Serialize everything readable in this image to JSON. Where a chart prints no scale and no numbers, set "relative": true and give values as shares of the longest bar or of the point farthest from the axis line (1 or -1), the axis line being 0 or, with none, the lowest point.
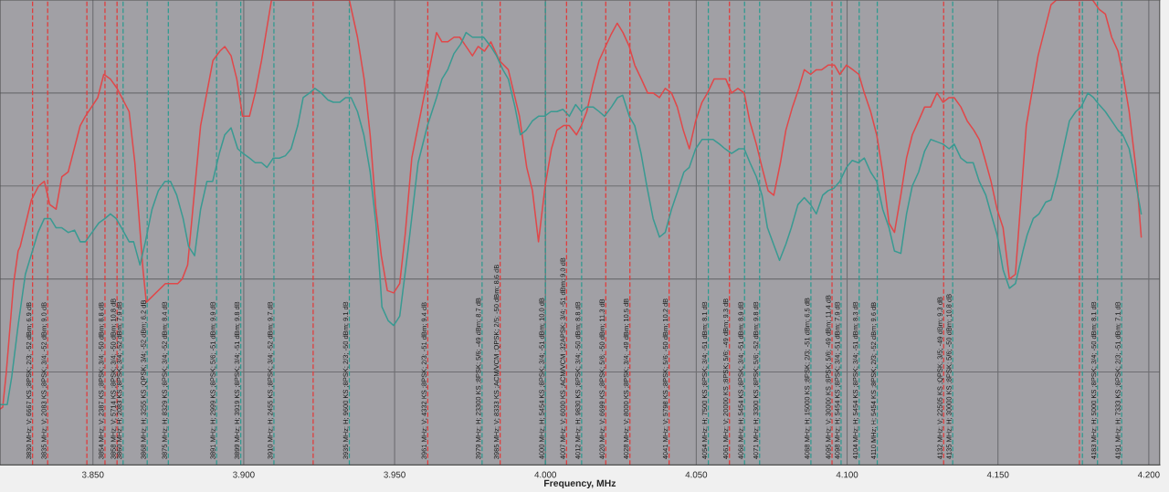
{
  "chart_data": {
    "type": "line",
    "relative": true,
    "xlabel": "Frequency, MHz",
    "xlim": [
      3.8192,
      4.2036
    ],
    "xticks": [
      {
        "value": 3.85,
        "label": "3.850"
      },
      {
        "value": 3.9,
        "label": "3.900"
      },
      {
        "value": 3.95,
        "label": "3.950"
      },
      {
        "value": 4.0,
        "label": "4.000"
      },
      {
        "value": 4.05,
        "label": "4.050"
      },
      {
        "value": 4.1,
        "label": "4.100"
      },
      {
        "value": 4.15,
        "label": "4.150"
      },
      {
        "value": 4.2,
        "label": "4.200"
      }
    ],
    "tick_labels": "x",
    "grid": true,
    "series": [
      {
        "color": "#e0484a",
        "x": [
          3.8192,
          3.8201,
          3.8213,
          3.8237,
          3.8252,
          3.8259,
          3.8296,
          3.832,
          3.8339,
          3.8357,
          3.8378,
          3.8397,
          3.8418,
          3.8458,
          3.8475,
          3.8516,
          3.8536,
          3.8558,
          3.858,
          3.862,
          3.8639,
          3.8666,
          3.8677,
          3.874,
          3.876,
          3.8781,
          3.8796,
          3.8814,
          3.8857,
          3.8898,
          3.8921,
          3.8937,
          3.8958,
          3.8977,
          3.8996,
          3.9019,
          3.9038,
          3.9059,
          3.9092,
          3.935,
          3.9377,
          3.9399,
          3.9419,
          3.9438,
          3.9456,
          3.9476,
          3.9497,
          3.9517,
          3.9535,
          3.9557,
          3.9609,
          3.9639,
          3.9657,
          3.9676,
          3.9697,
          3.9716,
          3.9737,
          3.9758,
          3.9777,
          3.9798,
          3.9819,
          3.9847,
          3.9877,
          3.9914,
          3.9938,
          3.9957,
          3.9977,
          3.9999,
          4.002,
          4.0038,
          4.006,
          4.0079,
          4.0103,
          4.0119,
          4.0137,
          4.0158,
          4.0178,
          4.0192,
          4.0217,
          4.0238,
          4.0257,
          4.0278,
          4.0296,
          4.0318,
          4.0339,
          4.0357,
          4.0378,
          4.0397,
          4.0418,
          4.0437,
          4.0457,
          4.0477,
          4.0498,
          4.0519,
          4.0537,
          4.0559,
          4.0577,
          4.0598,
          4.0617,
          4.0638,
          4.0659,
          4.0677,
          4.0699,
          4.0718,
          4.0738,
          4.0757,
          4.0779,
          4.0797,
          4.0819,
          4.084,
          4.0858,
          4.0879,
          4.0898,
          4.0916,
          4.0937,
          4.0958,
          4.0976,
          4.0998,
          4.1019,
          4.1039,
          4.1057,
          4.1078,
          4.1098,
          4.1118,
          4.1139,
          4.1157,
          4.1178,
          4.1197,
          4.1216,
          4.1237,
          4.1257,
          4.1277,
          4.1298,
          4.1318,
          4.1338,
          4.1355,
          4.1377,
          4.1398,
          4.142,
          4.1438,
          4.1456,
          4.1477,
          4.1497,
          4.1517,
          4.1538,
          4.1558,
          4.1594,
          4.1633,
          4.1676,
          4.1694,
          4.1814,
          4.1835,
          4.1856,
          4.1877,
          4.1898,
          4.1917,
          4.1935,
          4.1957,
          4.1975
        ],
        "values": [
          0.12,
          0.124,
          0.2,
          0.39,
          0.46,
          0.47,
          0.57,
          0.6,
          0.61,
          0.56,
          0.55,
          0.62,
          0.63,
          0.73,
          0.75,
          0.79,
          0.84,
          0.83,
          0.81,
          0.76,
          0.65,
          0.42,
          0.35,
          0.39,
          0.39,
          0.39,
          0.4,
          0.43,
          0.73,
          0.87,
          0.89,
          0.9,
          0.88,
          0.83,
          0.75,
          0.75,
          0.8,
          0.87,
          1.0,
          1.0,
          0.92,
          0.83,
          0.71,
          0.55,
          0.45,
          0.375,
          0.37,
          0.39,
          0.495,
          0.66,
          0.83,
          0.93,
          0.91,
          0.91,
          0.92,
          0.92,
          0.9,
          0.88,
          0.9,
          0.89,
          0.91,
          0.87,
          0.85,
          0.75,
          0.64,
          0.59,
          0.48,
          0.6,
          0.68,
          0.72,
          0.73,
          0.73,
          0.71,
          0.73,
          0.76,
          0.82,
          0.87,
          0.89,
          0.925,
          0.95,
          0.93,
          0.9,
          0.86,
          0.83,
          0.8,
          0.8,
          0.79,
          0.81,
          0.8,
          0.77,
          0.72,
          0.68,
          0.74,
          0.78,
          0.8,
          0.83,
          0.83,
          0.83,
          0.8,
          0.81,
          0.8,
          0.74,
          0.69,
          0.64,
          0.59,
          0.58,
          0.65,
          0.72,
          0.77,
          0.81,
          0.85,
          0.84,
          0.85,
          0.85,
          0.86,
          0.86,
          0.84,
          0.86,
          0.85,
          0.84,
          0.8,
          0.76,
          0.71,
          0.63,
          0.52,
          0.5,
          0.58,
          0.66,
          0.71,
          0.74,
          0.77,
          0.77,
          0.8,
          0.78,
          0.79,
          0.79,
          0.77,
          0.74,
          0.72,
          0.7,
          0.66,
          0.61,
          0.55,
          0.51,
          0.4,
          0.41,
          0.73,
          0.88,
          0.99,
          1.0,
          1.0,
          0.98,
          0.97,
          0.92,
          0.89,
          0.83,
          0.76,
          0.64,
          0.49
        ]
      },
      {
        "color": "#3a9a92",
        "x": [
          3.8192,
          3.8216,
          3.8231,
          3.8252,
          3.8276,
          3.8318,
          3.8339,
          3.8359,
          3.8378,
          3.8397,
          3.8418,
          3.8439,
          3.8458,
          3.8475,
          3.8497,
          3.8519,
          3.854,
          3.8558,
          3.8577,
          3.8599,
          3.862,
          3.8635,
          3.8656,
          3.8674,
          3.8696,
          3.8717,
          3.8739,
          3.8757,
          3.8778,
          3.8799,
          3.8817,
          3.8837,
          3.8857,
          3.8878,
          3.8897,
          3.8919,
          3.8937,
          3.8958,
          3.898,
          3.8998,
          3.9019,
          3.9038,
          3.9059,
          3.9077,
          3.9098,
          3.9118,
          3.9138,
          3.9157,
          3.9179,
          3.9197,
          3.9218,
          3.9236,
          3.9257,
          3.9279,
          3.9297,
          3.9318,
          3.9338,
          3.9356,
          3.9377,
          3.9398,
          3.9419,
          3.9438,
          3.945,
          3.9458,
          3.9479,
          3.9497,
          3.9517,
          3.9544,
          3.9578,
          3.9609,
          3.9639,
          3.9657,
          3.9676,
          3.9697,
          3.9719,
          3.9737,
          3.9758,
          3.9777,
          3.9795,
          3.9819,
          3.9838,
          3.9859,
          3.9877,
          3.9899,
          3.9917,
          3.9936,
          3.9957,
          3.9977,
          3.9997,
          4.0018,
          4.0038,
          4.0058,
          4.0079,
          4.01,
          4.0119,
          4.0137,
          4.0158,
          4.0178,
          4.0196,
          4.0219,
          4.0239,
          4.0256,
          4.0278,
          4.0296,
          4.0317,
          4.0336,
          4.0357,
          4.0378,
          4.0397,
          4.0418,
          4.0439,
          4.0459,
          4.0477,
          4.0498,
          4.0519,
          4.0537,
          4.0556,
          4.0577,
          4.0595,
          4.0617,
          4.0641,
          4.0659,
          4.0678,
          4.0699,
          4.0718,
          4.0736,
          4.0776,
          4.0797,
          4.0815,
          4.0837,
          4.0858,
          4.0879,
          4.0898,
          4.0919,
          4.0937,
          4.0956,
          4.0976,
          4.0998,
          4.1017,
          4.1037,
          4.1057,
          4.1078,
          4.1098,
          4.1118,
          4.1139,
          4.1157,
          4.1178,
          4.1197,
          4.1216,
          4.1237,
          4.1257,
          4.1277,
          4.1298,
          4.1318,
          4.1338,
          4.1355,
          4.1377,
          4.1398,
          4.1418,
          4.1438,
          4.146,
          4.1477,
          4.1497,
          4.1517,
          4.1538,
          4.1558,
          4.1583,
          4.1597,
          4.1617,
          4.1636,
          4.1658,
          4.1676,
          4.1697,
          4.1717,
          4.1737,
          4.1758,
          4.1776,
          4.1798,
          4.1817,
          4.1835,
          4.1856,
          4.1877,
          4.1898,
          4.1914,
          4.1935,
          4.1953,
          4.1975
        ],
        "values": [
          0.13,
          0.13,
          0.19,
          0.3,
          0.41,
          0.5,
          0.53,
          0.53,
          0.51,
          0.51,
          0.5,
          0.505,
          0.48,
          0.48,
          0.5,
          0.52,
          0.53,
          0.54,
          0.53,
          0.505,
          0.48,
          0.48,
          0.43,
          0.48,
          0.55,
          0.59,
          0.61,
          0.61,
          0.58,
          0.53,
          0.47,
          0.45,
          0.55,
          0.61,
          0.61,
          0.67,
          0.71,
          0.725,
          0.68,
          0.67,
          0.66,
          0.65,
          0.65,
          0.64,
          0.66,
          0.66,
          0.665,
          0.68,
          0.73,
          0.79,
          0.8,
          0.81,
          0.8,
          0.785,
          0.78,
          0.78,
          0.79,
          0.79,
          0.76,
          0.71,
          0.63,
          0.52,
          0.42,
          0.34,
          0.31,
          0.3,
          0.32,
          0.46,
          0.65,
          0.73,
          0.79,
          0.83,
          0.85,
          0.885,
          0.905,
          0.93,
          0.92,
          0.92,
          0.92,
          0.9,
          0.88,
          0.85,
          0.83,
          0.77,
          0.71,
          0.72,
          0.74,
          0.75,
          0.75,
          0.76,
          0.76,
          0.765,
          0.75,
          0.775,
          0.76,
          0.77,
          0.77,
          0.76,
          0.75,
          0.77,
          0.79,
          0.795,
          0.75,
          0.73,
          0.67,
          0.6,
          0.53,
          0.49,
          0.5,
          0.55,
          0.59,
          0.63,
          0.64,
          0.68,
          0.7,
          0.7,
          0.7,
          0.69,
          0.68,
          0.67,
          0.68,
          0.68,
          0.65,
          0.62,
          0.58,
          0.51,
          0.44,
          0.475,
          0.51,
          0.56,
          0.575,
          0.56,
          0.54,
          0.58,
          0.59,
          0.595,
          0.61,
          0.64,
          0.655,
          0.65,
          0.66,
          0.63,
          0.61,
          0.55,
          0.51,
          0.46,
          0.455,
          0.54,
          0.6,
          0.63,
          0.675,
          0.7,
          0.695,
          0.69,
          0.68,
          0.69,
          0.66,
          0.65,
          0.65,
          0.61,
          0.58,
          0.54,
          0.495,
          0.42,
          0.38,
          0.39,
          0.46,
          0.495,
          0.53,
          0.54,
          0.565,
          0.57,
          0.62,
          0.68,
          0.74,
          0.76,
          0.77,
          0.8,
          0.79,
          0.775,
          0.76,
          0.74,
          0.72,
          0.71,
          0.68,
          0.62,
          0.54
        ]
      }
    ],
    "ref_lines": [
      {
        "axis": "x",
        "value": 3.83,
        "color": "#e23a3a",
        "line_style": "dashed",
        "label": "3830 MHz; V; 6667 KS ;8PSK; 2/3; -52 dBm; 6.9 dB"
      },
      {
        "axis": "x",
        "value": 3.835,
        "color": "#e23a3a",
        "line_style": "dashed",
        "label": "3835 MHz; V; 2083 KS ;8PSK; 3/4; -52 dBm; 9.0 dB"
      },
      {
        "axis": "x",
        "value": 3.848,
        "color": "#e23a3a",
        "line_style": "dashed"
      },
      {
        "axis": "x",
        "value": 3.854,
        "color": "#e23a3a",
        "line_style": "dashed",
        "label": "3854 MHz; V; 2387 KS ;8PSK; 3/4; -50 dBm; 8.8 dB"
      },
      {
        "axis": "x",
        "value": 3.858,
        "color": "#e23a3a",
        "line_style": "dashed",
        "label": "3858 MHz; V; 5714 KS ;8PSK; 3/4; -50 dBm; 10.8 dB"
      },
      {
        "axis": "x",
        "value": 3.86,
        "color": "#2e9a90",
        "line_style": "dashed",
        "label": "3860 MHz; H; 2083 KS ;8PSK; 3/4; -52 dBm; 7.9 dB"
      },
      {
        "axis": "x",
        "value": 3.868,
        "color": "#2e9a90",
        "line_style": "dashed",
        "label": "3868 MHz; H; 3255 KS ;QPSK; 3/4; -52 dBm; 6.2 dB"
      },
      {
        "axis": "x",
        "value": 3.875,
        "color": "#2e9a90",
        "line_style": "dashed",
        "label": "3875 MHz; H; 8329 KS ;8PSK; 3/4; -52 dBm; 8.4 dB"
      },
      {
        "axis": "x",
        "value": 3.891,
        "color": "#2e9a90",
        "line_style": "dashed",
        "label": "3891 MHz; H; 2999 KS ;8PSK; 5/6; -51 dBm; 9.9 dB"
      },
      {
        "axis": "x",
        "value": 3.899,
        "color": "#2e9a90",
        "line_style": "dashed",
        "label": "3899 MHz; H; 3919 KS ;8PSK; 3/4; -51 dBm; 9.8 dB"
      },
      {
        "axis": "x",
        "value": 3.91,
        "color": "#2e9a90",
        "line_style": "dashed",
        "label": "3910 MHz; H; 2455 KS ;8PSK; 3/4; -52 dBm; 9.7 dB"
      },
      {
        "axis": "x",
        "value": 3.923,
        "color": "#e23a3a",
        "line_style": "dashed"
      },
      {
        "axis": "x",
        "value": 3.935,
        "color": "#2e9a90",
        "line_style": "dashed",
        "label": "3935 MHz; H; 9600 KS ;8PSK; 2/3; -50 dBm; 9.1 dB"
      },
      {
        "axis": "x",
        "value": 3.961,
        "color": "#e23a3a",
        "line_style": "dashed",
        "label": "3961 MHz; V; 4332 KS ;8PSK; 2/3; -51 dBm; 9.4 dB"
      },
      {
        "axis": "x",
        "value": 3.979,
        "color": "#2e9a90",
        "line_style": "dashed",
        "label": "3979 MHz; H; 23300 KS ;8PSK; 5/6; -49 dBm; 8.7 dB"
      },
      {
        "axis": "x",
        "value": 3.985,
        "color": "#e23a3a",
        "line_style": "dashed",
        "label": "3985 MHz; V; 8333 KS ;ACM/VCM ;QPSK; 2/5; -50 dBm; 8.6 dB"
      },
      {
        "axis": "x",
        "value": 4.0,
        "color": "#2e9a90",
        "line_style": "dashed",
        "label": "4000 MHz; H; 5454 KS ;8PSK; 3/4; -51 dBm; 10.0 dB"
      },
      {
        "axis": "x",
        "value": 4.007,
        "color": "#e23a3a",
        "line_style": "dashed",
        "label": "4007 MHz; V; 6000 KS ;ACM/VCM ;32APSK; 3/4; -51 dBm; 9.0 dB"
      },
      {
        "axis": "x",
        "value": 4.012,
        "color": "#2e9a90",
        "line_style": "dashed",
        "label": "4012 MHz; H; 9830 KS ;8PSK; 3/4; -50 dBm; 8.8 dB"
      },
      {
        "axis": "x",
        "value": 4.02,
        "color": "#e23a3a",
        "line_style": "dashed",
        "label": "4020 MHz; V; 6699 KS ;8PSK; 5/6; -50 dBm; 11.3 dB"
      },
      {
        "axis": "x",
        "value": 4.028,
        "color": "#e23a3a",
        "line_style": "dashed",
        "label": "4028 MHz; V; 8000 KS ;8PSK; 3/4; -49 dBm; 10.5 dB"
      },
      {
        "axis": "x",
        "value": 4.041,
        "color": "#e23a3a",
        "line_style": "dashed",
        "label": "4041 MHz; V; 5798 KS ;8PSK; 5/6; -50 dBm; 10.2 dB"
      },
      {
        "axis": "x",
        "value": 4.054,
        "color": "#2e9a90",
        "line_style": "dashed",
        "label": "4054 MHz; H; 7500 KS ;8PSK; 3/4; -51 dBm; 8.1 dB"
      },
      {
        "axis": "x",
        "value": 4.061,
        "color": "#e23a3a",
        "line_style": "dashed",
        "label": "4061 MHz; V; 20000 KS ;8PSK; 5/6; -49 dBm; 9.3 dB"
      },
      {
        "axis": "x",
        "value": 4.066,
        "color": "#2e9a90",
        "line_style": "dashed",
        "label": "4066 MHz; H; 5454 KS ;8PSK; 3/4; -51 dBm; 8.9 dB"
      },
      {
        "axis": "x",
        "value": 4.071,
        "color": "#2e9a90",
        "line_style": "dashed",
        "label": "4071 MHz; H; 3300 KS ;8PSK; 5/6; -52 dBm; 9.8 dB"
      },
      {
        "axis": "x",
        "value": 4.088,
        "color": "#2e9a90",
        "line_style": "dashed",
        "label": "4088 MHz; H; 15000 KS ;8PSK; 2/3; -51 dBm; 6.5 dB"
      },
      {
        "axis": "x",
        "value": 4.095,
        "color": "#e23a3a",
        "line_style": "dashed",
        "label": "4095 MHz; V; 30000 KS ;8PSK; 5/6; -49 dBm; 11.4 dB"
      },
      {
        "axis": "x",
        "value": 4.098,
        "color": "#2e9a90",
        "line_style": "dashed",
        "label": "4098 MHz; H; 5454 KS ;8PSK; 3/4; -51 dBm; 7.9 dB"
      },
      {
        "axis": "x",
        "value": 4.104,
        "color": "#2e9a90",
        "line_style": "dashed",
        "label": "4104 MHz; H; 5454 KS ;8PSK; 3/4; -51 dBm; 8.3 dB"
      },
      {
        "axis": "x",
        "value": 4.11,
        "color": "#2e9a90",
        "line_style": "dashed",
        "label": "4110 MHz; H; 5454 KS ;8PSK; 2/3; -52 dBm; 9.6 dB"
      },
      {
        "axis": "x",
        "value": 4.132,
        "color": "#e23a3a",
        "line_style": "dashed",
        "label": "4132 MHz; V; 22505 KS ;QPSK; 3/5; -49 dBm; 9.3 dB"
      },
      {
        "axis": "x",
        "value": 4.135,
        "color": "#2e9a90",
        "line_style": "dashed",
        "label": "4135 MHz; H; 30000 KS ;8PSK; 5/6; -50 dBm; 10.8 dB"
      },
      {
        "axis": "x",
        "value": 4.177,
        "color": "#e23a3a",
        "line_style": "dashed"
      },
      {
        "axis": "x",
        "value": 4.178,
        "color": "#2e9a90",
        "line_style": "dashed"
      },
      {
        "axis": "x",
        "value": 4.183,
        "color": "#2e9a90",
        "line_style": "dashed",
        "label": "4183 MHz; H; 5000 KS ;8PSK; 3/4; -50 dBm; 8.1 dB"
      },
      {
        "axis": "x",
        "value": 4.191,
        "color": "#2e9a90",
        "line_style": "dashed",
        "label": "4191 MHz; H; 7333 KS ;8PSK; 2/3; -51 dBm; 7.1 dB"
      }
    ]
  }
}
